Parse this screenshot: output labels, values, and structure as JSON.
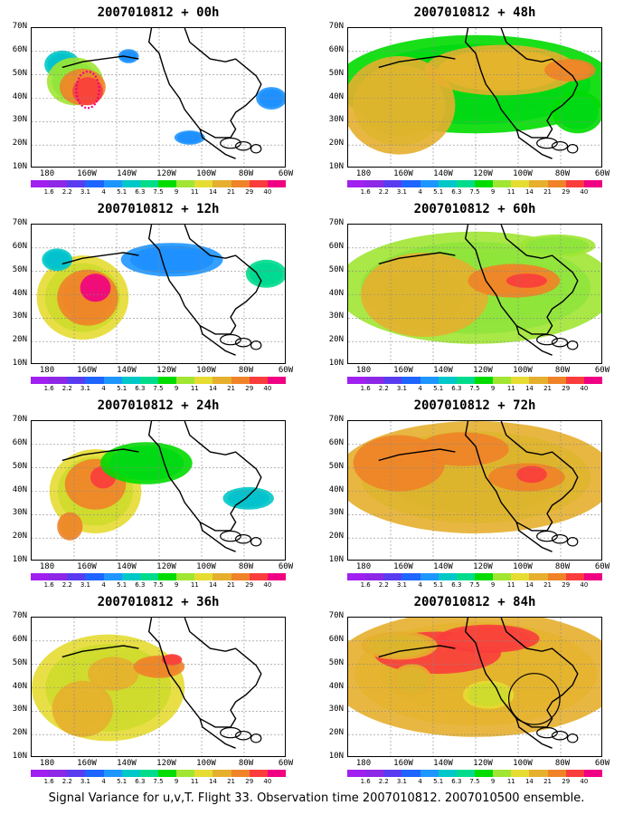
{
  "panels": [
    {
      "title": "2007010812 + 00h",
      "fields": [
        [
          0.12,
          0.26,
          0.07,
          0.1,
          1.2
        ],
        [
          0.17,
          0.38,
          0.11,
          0.17,
          1.8
        ],
        [
          0.2,
          0.42,
          0.09,
          0.13,
          2.5
        ],
        [
          0.22,
          0.45,
          0.06,
          0.1,
          2.8
        ],
        [
          0.38,
          0.2,
          0.04,
          0.05,
          1.0
        ],
        [
          0.62,
          0.78,
          0.06,
          0.05,
          1.0
        ],
        [
          0.94,
          0.5,
          0.06,
          0.08,
          1.0
        ]
      ],
      "marker": "dotted-ellipse"
    },
    {
      "title": "2007010812 + 48h",
      "fields": [
        [
          0.5,
          0.4,
          0.55,
          0.35,
          1.6
        ],
        [
          0.2,
          0.55,
          0.22,
          0.35,
          2.2
        ],
        [
          0.6,
          0.3,
          0.3,
          0.18,
          2.4
        ],
        [
          0.87,
          0.3,
          0.1,
          0.08,
          2.6
        ],
        [
          0.9,
          0.6,
          0.1,
          0.15,
          1.6
        ]
      ]
    },
    {
      "title": "2007010812 + 12h",
      "fields": [
        [
          0.2,
          0.52,
          0.18,
          0.3,
          2.0
        ],
        [
          0.22,
          0.52,
          0.12,
          0.2,
          2.6
        ],
        [
          0.25,
          0.45,
          0.06,
          0.1,
          2.9
        ],
        [
          0.55,
          0.25,
          0.2,
          0.12,
          1.0
        ],
        [
          0.92,
          0.35,
          0.08,
          0.1,
          1.4
        ],
        [
          0.1,
          0.25,
          0.06,
          0.08,
          1.2
        ]
      ]
    },
    {
      "title": "2007010812 + 60h",
      "fields": [
        [
          0.5,
          0.45,
          0.55,
          0.4,
          1.8
        ],
        [
          0.3,
          0.5,
          0.25,
          0.3,
          2.2
        ],
        [
          0.65,
          0.4,
          0.18,
          0.12,
          2.6
        ],
        [
          0.7,
          0.4,
          0.08,
          0.05,
          2.8
        ],
        [
          0.82,
          0.15,
          0.15,
          0.08,
          1.8
        ]
      ]
    },
    {
      "title": "2007010812 + 24h",
      "fields": [
        [
          0.25,
          0.5,
          0.18,
          0.3,
          2.0
        ],
        [
          0.25,
          0.45,
          0.12,
          0.18,
          2.5
        ],
        [
          0.28,
          0.4,
          0.05,
          0.08,
          2.8
        ],
        [
          0.15,
          0.75,
          0.05,
          0.1,
          2.5
        ],
        [
          0.45,
          0.3,
          0.18,
          0.15,
          1.6
        ],
        [
          0.85,
          0.55,
          0.1,
          0.08,
          1.2
        ]
      ]
    },
    {
      "title": "2007010812 + 72h",
      "fields": [
        [
          0.5,
          0.4,
          0.55,
          0.4,
          2.2
        ],
        [
          0.2,
          0.3,
          0.18,
          0.2,
          2.6
        ],
        [
          0.45,
          0.2,
          0.18,
          0.12,
          2.6
        ],
        [
          0.7,
          0.4,
          0.15,
          0.1,
          2.6
        ],
        [
          0.72,
          0.38,
          0.06,
          0.06,
          2.8
        ]
      ]
    },
    {
      "title": "2007010812 + 36h",
      "fields": [
        [
          0.3,
          0.5,
          0.3,
          0.38,
          2.0
        ],
        [
          0.2,
          0.65,
          0.12,
          0.2,
          2.4
        ],
        [
          0.32,
          0.4,
          0.1,
          0.12,
          2.4
        ],
        [
          0.5,
          0.35,
          0.1,
          0.08,
          2.6
        ],
        [
          0.55,
          0.3,
          0.04,
          0.04,
          2.8
        ]
      ]
    },
    {
      "title": "2007010812 + 84h",
      "fields": [
        [
          0.5,
          0.4,
          0.58,
          0.45,
          2.4
        ],
        [
          0.35,
          0.25,
          0.25,
          0.15,
          2.7
        ],
        [
          0.55,
          0.15,
          0.2,
          0.1,
          2.8
        ],
        [
          0.25,
          0.45,
          0.08,
          0.12,
          2.2
        ],
        [
          0.2,
          0.2,
          0.15,
          0.1,
          2.2
        ],
        [
          0.55,
          0.55,
          0.1,
          0.1,
          2.0
        ]
      ],
      "marker": "circle"
    }
  ],
  "y_labels": [
    "70N",
    "60N",
    "50N",
    "40N",
    "30N",
    "20N",
    "10N"
  ],
  "x_labels": [
    "180",
    "160W",
    "140W",
    "120W",
    "100W",
    "80W",
    "60W"
  ],
  "colorbar": {
    "labels": [
      "1.6",
      "2.2",
      "3.1",
      "4",
      "5.1",
      "6.3",
      "7.5",
      "9",
      "11",
      "14",
      "21",
      "29",
      "40"
    ],
    "colors": [
      "#a020f0",
      "#8c28e6",
      "#5a3cf0",
      "#1e64ff",
      "#1e96ff",
      "#00c8c8",
      "#00dc8c",
      "#00dc00",
      "#a0e632",
      "#e6dc32",
      "#e6af2d",
      "#f08228",
      "#fa3c3c",
      "#f00082"
    ]
  },
  "caption": "Signal Variance for u,v,T. Flight 33. Observation time 2007010812. 2007010500 ensemble."
}
